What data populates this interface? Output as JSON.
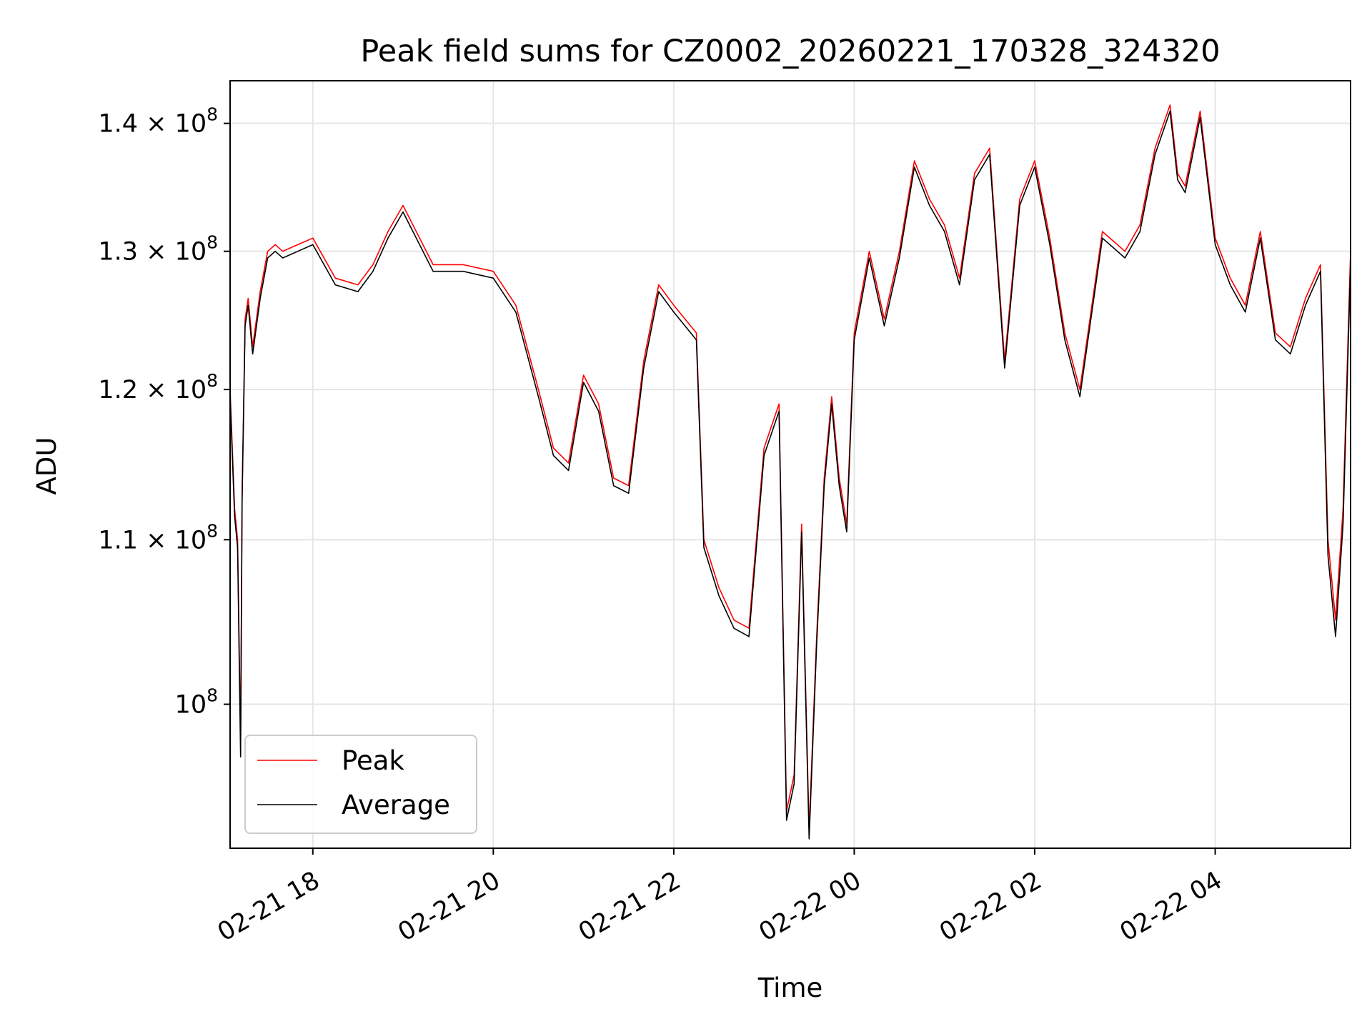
{
  "chart_data": {
    "type": "line",
    "title": "Peak field sums for CZ0002_20260221_170328_324320",
    "xlabel": "Time",
    "ylabel": "ADU",
    "yscale": "log",
    "grid": true,
    "legend_position": "lower-left",
    "x_tick_labels": [
      "02-21 18",
      "02-21 20",
      "02-21 22",
      "02-22 00",
      "02-22 02",
      "02-22 04"
    ],
    "y_ticks": [
      {
        "base": "10",
        "exp": "8"
      },
      {
        "base": "1.1 × 10",
        "exp": "8"
      },
      {
        "base": "1.2 × 10",
        "exp": "8"
      },
      {
        "base": "1.3 × 10",
        "exp": "8"
      },
      {
        "base": "1.4 × 10",
        "exp": "8"
      }
    ],
    "y_tick_values": [
      100000000,
      110000000,
      120000000,
      130000000,
      140000000
    ],
    "xlim": [
      "2026-02-21 17:05",
      "2026-02-22 05:30"
    ],
    "ylim": [
      92000000,
      143500000
    ],
    "x": [
      "2026-02-21 17:05",
      "2026-02-21 17:08",
      "2026-02-21 17:10",
      "2026-02-21 17:12",
      "2026-02-21 17:13",
      "2026-02-21 17:15",
      "2026-02-21 17:17",
      "2026-02-21 17:20",
      "2026-02-21 17:25",
      "2026-02-21 17:30",
      "2026-02-21 17:35",
      "2026-02-21 17:40",
      "2026-02-21 17:50",
      "2026-02-21 18:00",
      "2026-02-21 18:15",
      "2026-02-21 18:30",
      "2026-02-21 18:40",
      "2026-02-21 18:50",
      "2026-02-21 19:00",
      "2026-02-21 19:20",
      "2026-02-21 19:40",
      "2026-02-21 20:00",
      "2026-02-21 20:15",
      "2026-02-21 20:30",
      "2026-02-21 20:40",
      "2026-02-21 20:50",
      "2026-02-21 21:00",
      "2026-02-21 21:10",
      "2026-02-21 21:20",
      "2026-02-21 21:30",
      "2026-02-21 21:40",
      "2026-02-21 21:50",
      "2026-02-21 22:00",
      "2026-02-21 22:15",
      "2026-02-21 22:20",
      "2026-02-21 22:30",
      "2026-02-21 22:40",
      "2026-02-21 22:50",
      "2026-02-21 23:00",
      "2026-02-21 23:10",
      "2026-02-21 23:15",
      "2026-02-21 23:20",
      "2026-02-21 23:25",
      "2026-02-21 23:30",
      "2026-02-21 23:35",
      "2026-02-21 23:40",
      "2026-02-21 23:45",
      "2026-02-21 23:50",
      "2026-02-21 23:55",
      "2026-02-22 00:00",
      "2026-02-22 00:10",
      "2026-02-22 00:20",
      "2026-02-22 00:30",
      "2026-02-22 00:40",
      "2026-02-22 00:50",
      "2026-02-22 01:00",
      "2026-02-22 01:10",
      "2026-02-22 01:20",
      "2026-02-22 01:30",
      "2026-02-22 01:40",
      "2026-02-22 01:50",
      "2026-02-22 02:00",
      "2026-02-22 02:10",
      "2026-02-22 02:20",
      "2026-02-22 02:30",
      "2026-02-22 02:45",
      "2026-02-22 03:00",
      "2026-02-22 03:10",
      "2026-02-22 03:20",
      "2026-02-22 03:30",
      "2026-02-22 03:35",
      "2026-02-22 03:40",
      "2026-02-22 03:50",
      "2026-02-22 04:00",
      "2026-02-22 04:10",
      "2026-02-22 04:20",
      "2026-02-22 04:30",
      "2026-02-22 04:40",
      "2026-02-22 04:50",
      "2026-02-22 05:00",
      "2026-02-22 05:10",
      "2026-02-22 05:15",
      "2026-02-22 05:20",
      "2026-02-22 05:25",
      "2026-02-22 05:30"
    ],
    "series": [
      {
        "name": "Peak",
        "color": "#ff0000",
        "values": [
          120000000,
          112000000,
          110000000,
          98000000,
          113000000,
          125000000,
          126500000,
          123000000,
          127000000,
          130000000,
          130500000,
          130000000,
          130500000,
          131000000,
          128000000,
          127500000,
          129000000,
          131500000,
          133500000,
          129000000,
          129000000,
          128500000,
          126000000,
          120000000,
          116000000,
          115000000,
          121000000,
          119000000,
          114000000,
          113500000,
          122000000,
          127500000,
          126000000,
          124000000,
          110000000,
          107000000,
          105000000,
          104500000,
          116000000,
          119000000,
          94000000,
          96000000,
          111000000,
          93000000,
          104000000,
          114000000,
          119500000,
          114000000,
          111000000,
          124000000,
          130000000,
          125000000,
          130000000,
          137000000,
          134000000,
          132000000,
          128000000,
          136000000,
          138000000,
          122000000,
          134000000,
          137000000,
          131000000,
          124000000,
          120000000,
          131500000,
          130000000,
          132000000,
          138000000,
          141500000,
          136000000,
          135000000,
          141000000,
          131000000,
          128000000,
          126000000,
          131500000,
          124000000,
          123000000,
          126500000,
          129000000,
          110000000,
          105000000,
          112000000,
          130000000
        ]
      },
      {
        "name": "Average",
        "color": "#000000",
        "values": [
          119500000,
          111500000,
          109500000,
          97000000,
          112500000,
          124500000,
          126000000,
          122500000,
          126500000,
          129500000,
          130000000,
          129500000,
          130000000,
          130500000,
          127500000,
          127000000,
          128500000,
          131000000,
          133000000,
          128500000,
          128500000,
          128000000,
          125500000,
          119500000,
          115500000,
          114500000,
          120500000,
          118500000,
          113500000,
          113000000,
          121500000,
          127000000,
          125500000,
          123500000,
          109500000,
          106500000,
          104500000,
          104000000,
          115500000,
          118500000,
          93500000,
          95500000,
          110500000,
          92500000,
          103500000,
          113500000,
          119000000,
          113500000,
          110500000,
          123500000,
          129500000,
          124500000,
          129500000,
          136500000,
          133500000,
          131500000,
          127500000,
          135500000,
          137500000,
          121500000,
          133500000,
          136500000,
          130500000,
          123500000,
          119500000,
          131000000,
          129500000,
          131500000,
          137500000,
          141000000,
          135500000,
          134500000,
          140500000,
          130500000,
          127500000,
          125500000,
          131000000,
          123500000,
          122500000,
          126000000,
          128500000,
          109000000,
          104000000,
          111000000,
          129000000
        ]
      }
    ]
  }
}
